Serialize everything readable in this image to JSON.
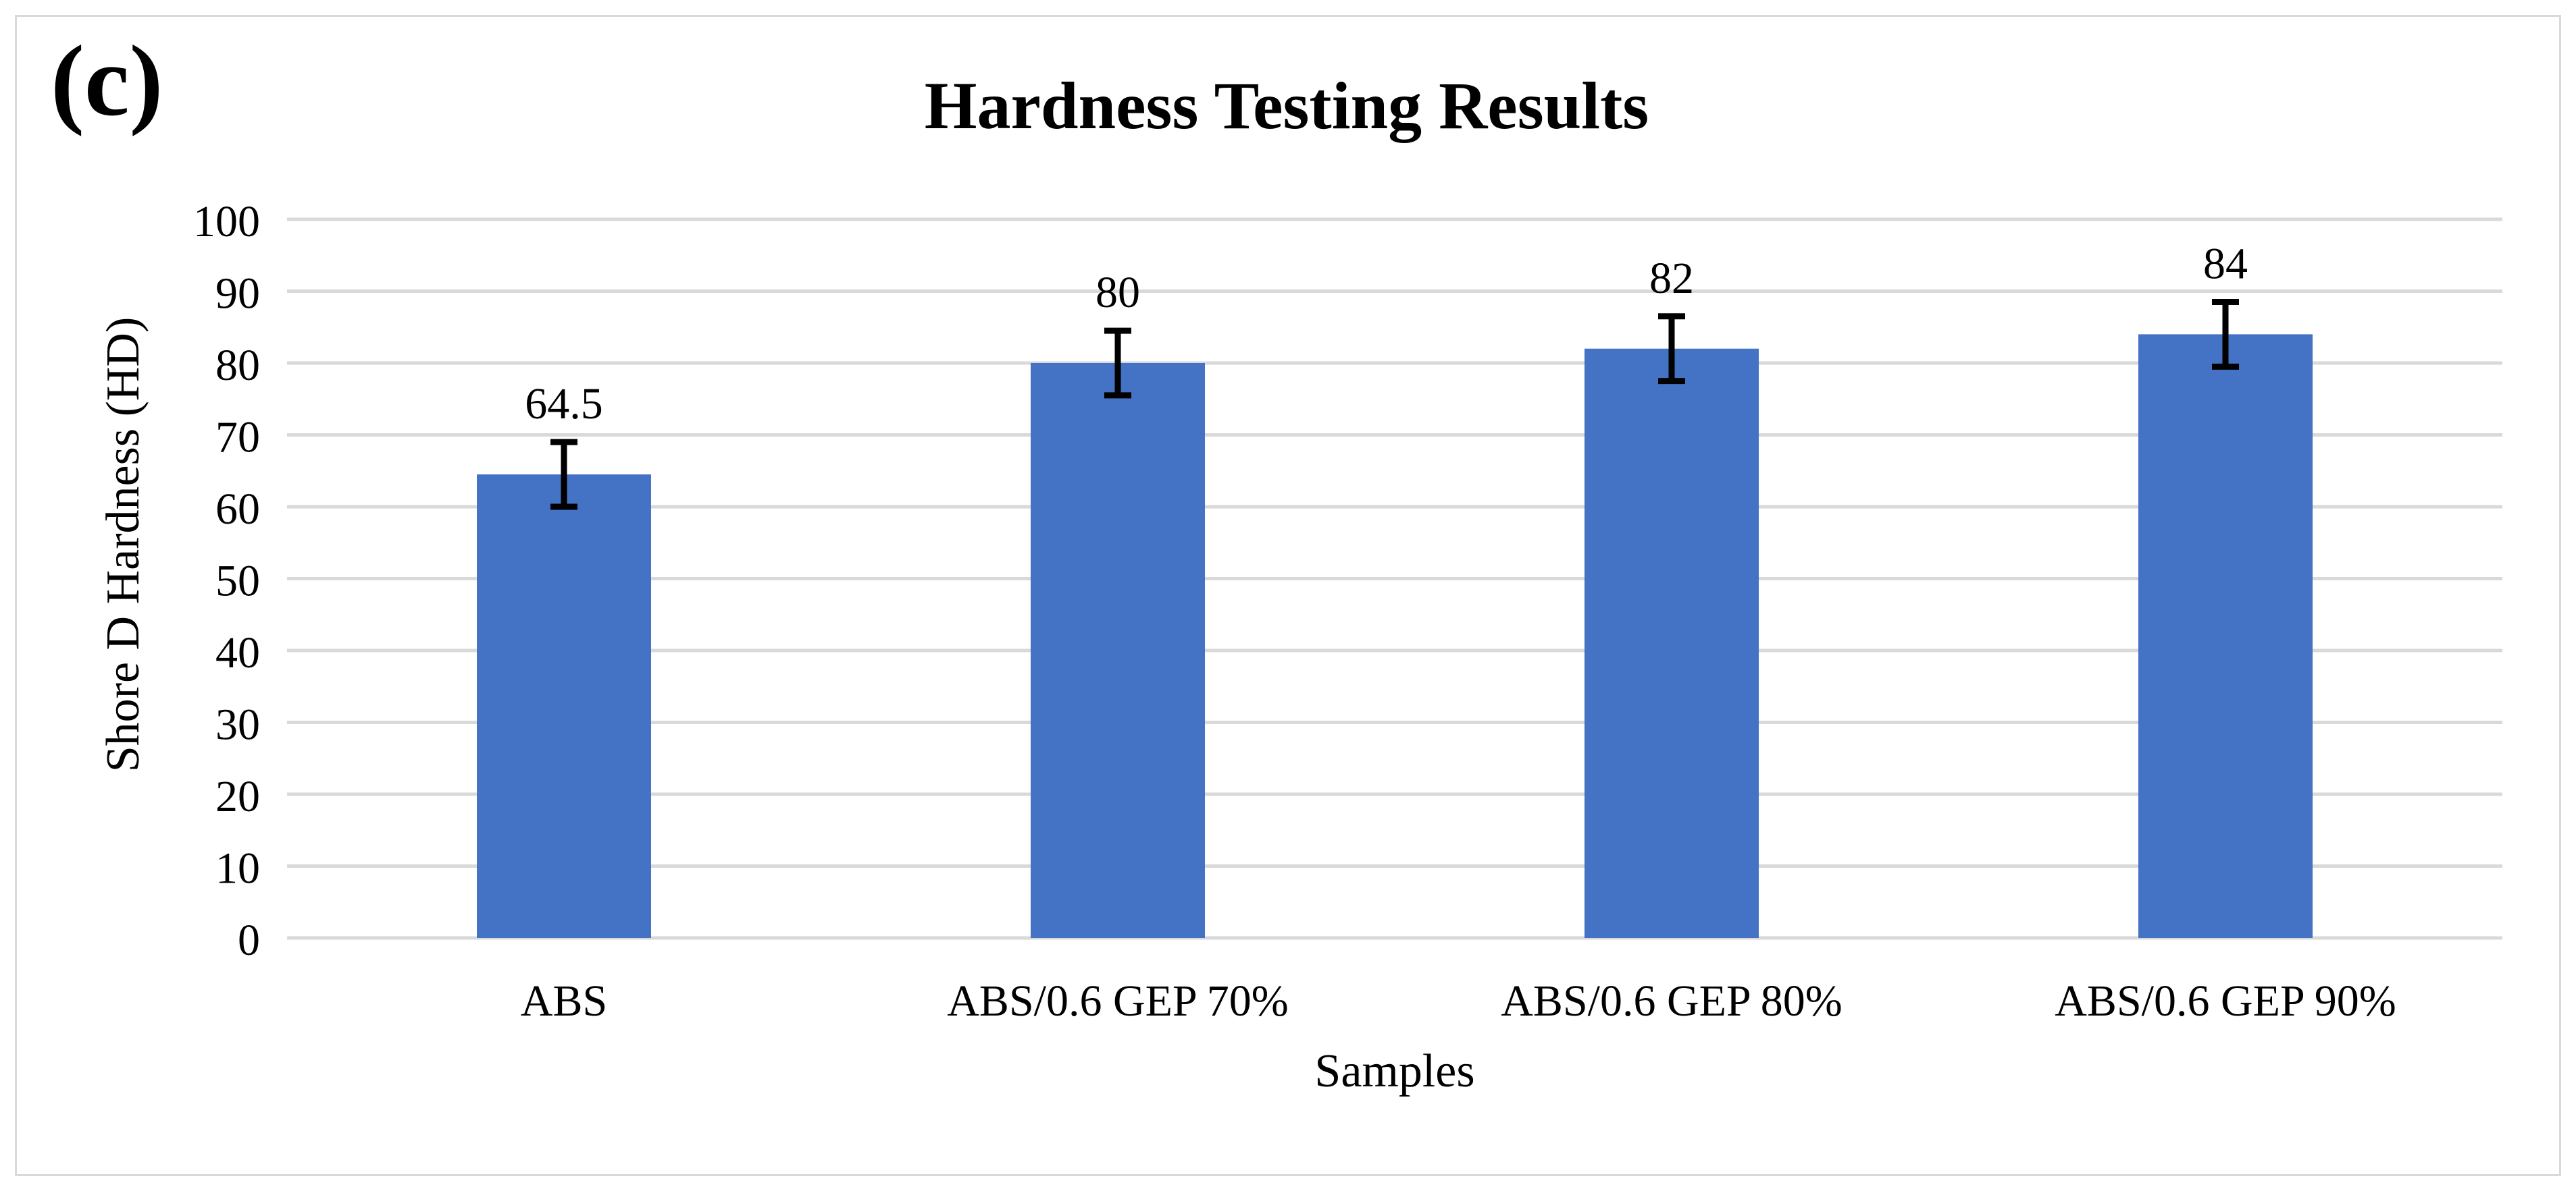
{
  "panel_label": "(c)",
  "chart_data": {
    "type": "bar",
    "title": "Hardness Testing Results",
    "xlabel": "Samples",
    "ylabel": "Shore D Hardness (HD)",
    "ylim": [
      0,
      100
    ],
    "y_ticks": [
      0,
      10,
      20,
      30,
      40,
      50,
      60,
      70,
      80,
      90,
      100
    ],
    "grid": true,
    "categories": [
      "ABS",
      "ABS/0.6 GEP 70%",
      "ABS/0.6 GEP 80%",
      "ABS/0.6 GEP 90%"
    ],
    "values": [
      64.5,
      80,
      82,
      84
    ],
    "data_labels": [
      "64.5",
      "80",
      "82",
      "84"
    ],
    "error": [
      4.5,
      4.5,
      4.5,
      4.5
    ],
    "colors": {
      "bar": "#4472c4",
      "grid": "#d9d9d9",
      "error_bar": "#000000",
      "text": "#000000"
    }
  }
}
